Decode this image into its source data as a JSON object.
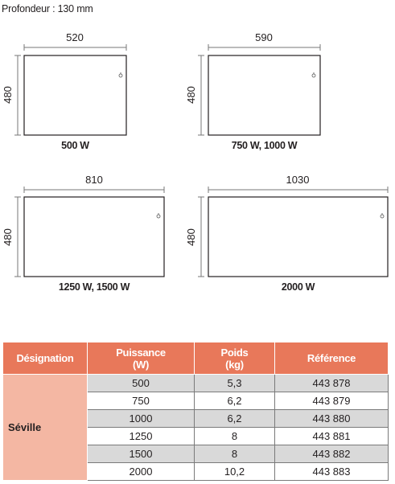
{
  "depth_label": "Profondeur : 130 mm",
  "diagrams": [
    {
      "width": "520",
      "height": "480",
      "caption": "500 W"
    },
    {
      "width": "590",
      "height": "480",
      "caption": "750 W, 1000 W"
    },
    {
      "width": "810",
      "height": "480",
      "caption": "1250 W, 1500 W"
    },
    {
      "width": "1030",
      "height": "480",
      "caption": "2000 W"
    }
  ],
  "table": {
    "headers": {
      "designation": "Désignation",
      "power_line1": "Puissance",
      "power_line2": "(W)",
      "weight_line1": "Poids",
      "weight_line2": "(kg)",
      "reference": "Référence"
    },
    "model": "Séville",
    "rows": [
      {
        "power": "500",
        "weight": "5,3",
        "ref": "443 878"
      },
      {
        "power": "750",
        "weight": "6,2",
        "ref": "443 879"
      },
      {
        "power": "1000",
        "weight": "6,2",
        "ref": "443 880"
      },
      {
        "power": "1250",
        "weight": "8",
        "ref": "443 881"
      },
      {
        "power": "1500",
        "weight": "8",
        "ref": "443 882"
      },
      {
        "power": "2000",
        "weight": "10,2",
        "ref": "443 883"
      }
    ]
  },
  "colors": {
    "header_bg": "#e8785a",
    "designation_bg": "#f4b7a3",
    "row_shade": "#d9d9d9",
    "row_plain": "#ffffff"
  }
}
